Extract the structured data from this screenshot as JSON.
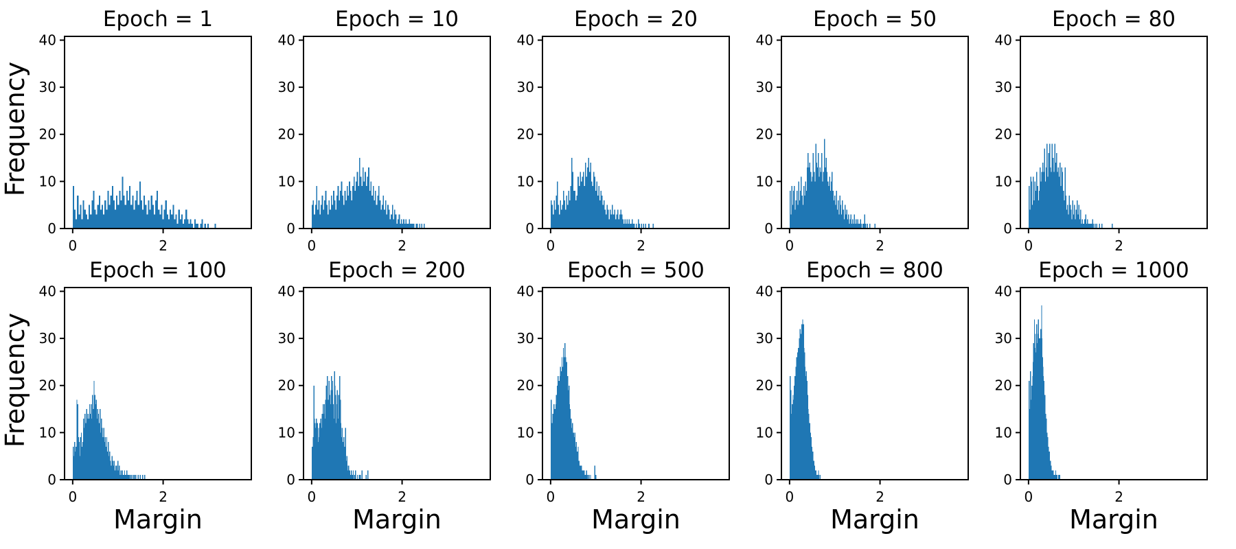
{
  "figure": {
    "background": "#ffffff",
    "bar_color": "#1f77b4",
    "axis_color": "#000000",
    "rows": [
      {
        "ylabel": "Frequency"
      },
      {
        "ylabel": "Frequency"
      }
    ]
  },
  "chart_data": [
    {
      "type": "bar",
      "title": "Epoch = 1",
      "xlabel": "",
      "ylabel": "Frequency",
      "xlim": [
        -0.18,
        3.95
      ],
      "ylim": [
        0,
        40.8
      ],
      "xticks": [
        0,
        2
      ],
      "yticks": [
        0,
        10,
        20,
        30,
        40
      ],
      "x_start": 0,
      "bin_width": 0.032,
      "heights": [
        9,
        4,
        2,
        7,
        3,
        5,
        2,
        6,
        4,
        3,
        2,
        5,
        3,
        6,
        8,
        4,
        3,
        5,
        7,
        4,
        5,
        3,
        6,
        4,
        8,
        5,
        7,
        9,
        6,
        4,
        7,
        5,
        8,
        6,
        11,
        7,
        5,
        8,
        6,
        9,
        5,
        7,
        4,
        6,
        8,
        5,
        10,
        6,
        4,
        7,
        5,
        3,
        6,
        4,
        7,
        5,
        3,
        6,
        8,
        4,
        3,
        5,
        2,
        4,
        6,
        3,
        2,
        4,
        3,
        5,
        2,
        3,
        1,
        4,
        2,
        3,
        1,
        2,
        4,
        2,
        1,
        2,
        1,
        0,
        2,
        1,
        1,
        0,
        1,
        2,
        0,
        1,
        0,
        1,
        0,
        0,
        0,
        0,
        1,
        0
      ]
    },
    {
      "type": "bar",
      "title": "Epoch = 10",
      "xlabel": "",
      "ylabel": "",
      "xlim": [
        -0.18,
        3.95
      ],
      "ylim": [
        0,
        40.8
      ],
      "xticks": [
        0,
        2
      ],
      "yticks": [
        0,
        10,
        20,
        30,
        40
      ],
      "x_start": 0,
      "bin_width": 0.025,
      "heights": [
        5,
        6,
        3,
        5,
        9,
        4,
        6,
        3,
        5,
        7,
        4,
        6,
        8,
        5,
        3,
        6,
        4,
        7,
        5,
        8,
        6,
        4,
        7,
        9,
        6,
        8,
        10,
        7,
        5,
        8,
        6,
        9,
        7,
        10,
        8,
        6,
        9,
        11,
        8,
        10,
        12,
        9,
        15,
        11,
        9,
        13,
        10,
        12,
        9,
        11,
        13,
        8,
        10,
        7,
        9,
        6,
        8,
        5,
        7,
        9,
        6,
        4,
        5,
        7,
        4,
        6,
        3,
        5,
        4,
        2,
        3,
        5,
        2,
        4,
        3,
        1,
        2,
        3,
        1,
        2,
        1,
        2,
        1,
        2,
        1,
        1,
        2,
        1,
        1,
        1,
        1,
        0,
        1,
        1,
        0,
        1,
        0,
        1,
        0,
        1
      ]
    },
    {
      "type": "bar",
      "title": "Epoch = 20",
      "xlabel": "",
      "ylabel": "",
      "xlim": [
        -0.18,
        3.95
      ],
      "ylim": [
        0,
        40.8
      ],
      "xticks": [
        0,
        2
      ],
      "yticks": [
        0,
        10,
        20,
        30,
        40
      ],
      "x_start": 0,
      "bin_width": 0.023,
      "heights": [
        6,
        5,
        3,
        6,
        4,
        7,
        10,
        5,
        3,
        6,
        4,
        5,
        8,
        6,
        4,
        7,
        5,
        8,
        6,
        9,
        15,
        12,
        8,
        8,
        6,
        7,
        11,
        9,
        12,
        10,
        11,
        12,
        9,
        14,
        11,
        13,
        15,
        12,
        14,
        10,
        9,
        12,
        11,
        8,
        10,
        7,
        9,
        6,
        8,
        7,
        5,
        6,
        4,
        3,
        5,
        4,
        2,
        4,
        3,
        5,
        3,
        4,
        2,
        3,
        4,
        2,
        3,
        4,
        3,
        2,
        1,
        2,
        1,
        2,
        1,
        2,
        1,
        1,
        2,
        1,
        1,
        0,
        1,
        0,
        2,
        1,
        0,
        1,
        0,
        1,
        0,
        1,
        0,
        0,
        1,
        0,
        0,
        0,
        1,
        0
      ]
    },
    {
      "type": "bar",
      "title": "Epoch = 50",
      "xlabel": "",
      "ylabel": "",
      "xlim": [
        -0.18,
        3.95
      ],
      "ylim": [
        0,
        40.8
      ],
      "xticks": [
        0,
        2
      ],
      "yticks": [
        0,
        10,
        20,
        30,
        40
      ],
      "x_start": 0,
      "bin_width": 0.019,
      "heights": [
        8,
        3,
        9,
        5,
        8,
        9,
        4,
        6,
        8,
        5,
        10,
        6,
        8,
        11,
        7,
        5,
        9,
        7,
        10,
        8,
        13,
        16,
        13,
        14,
        12,
        10,
        11,
        16,
        12,
        10,
        18,
        14,
        13,
        16,
        11,
        13,
        12,
        16,
        10,
        12,
        19,
        13,
        15,
        12,
        10,
        9,
        11,
        8,
        10,
        12,
        8,
        6,
        7,
        5,
        8,
        4,
        6,
        3,
        7,
        5,
        3,
        6,
        4,
        2,
        5,
        3,
        4,
        2,
        3,
        1,
        2,
        3,
        1,
        2,
        1,
        3,
        1,
        2,
        1,
        2,
        1,
        1,
        2,
        1,
        0,
        1,
        1,
        3,
        1,
        0,
        1,
        0,
        0,
        1,
        0,
        0,
        0,
        0,
        0,
        1
      ]
    },
    {
      "type": "bar",
      "title": "Epoch = 80",
      "xlabel": "",
      "ylabel": "",
      "xlim": [
        -0.18,
        3.95
      ],
      "ylim": [
        0,
        40.8
      ],
      "xticks": [
        0,
        2
      ],
      "yticks": [
        0,
        10,
        20,
        30,
        40
      ],
      "x_start": 0,
      "bin_width": 0.019,
      "heights": [
        9,
        4,
        11,
        10,
        5,
        11,
        6,
        10,
        8,
        12,
        9,
        6,
        8,
        13,
        10,
        12,
        14,
        12,
        17,
        10,
        13,
        18,
        11,
        16,
        18,
        13,
        12,
        18,
        15,
        12,
        18,
        14,
        16,
        12,
        13,
        11,
        14,
        9,
        13,
        12,
        8,
        6,
        13,
        7,
        4,
        5,
        3,
        7,
        5,
        4,
        2,
        6,
        3,
        5,
        2,
        4,
        6,
        3,
        5,
        2,
        4,
        1,
        2,
        1,
        1,
        2,
        3,
        1,
        2,
        1,
        1,
        1,
        1,
        1,
        2,
        1,
        0,
        1,
        0,
        1,
        0,
        0,
        1,
        0,
        0,
        1,
        0,
        0,
        0,
        0,
        0,
        0,
        0,
        0,
        0,
        0,
        0,
        1,
        0,
        0
      ]
    },
    {
      "type": "bar",
      "title": "Epoch = 100",
      "xlabel": "Margin",
      "ylabel": "Frequency",
      "xlim": [
        -0.18,
        3.95
      ],
      "ylim": [
        0,
        40.8
      ],
      "xticks": [
        0,
        2
      ],
      "yticks": [
        0,
        10,
        20,
        30,
        40
      ],
      "x_start": 0,
      "bin_width": 0.0165,
      "heights": [
        7,
        5,
        8,
        6,
        7,
        17,
        16,
        9,
        8,
        5,
        9,
        10,
        7,
        8,
        13,
        11,
        14,
        12,
        15,
        13,
        14,
        13,
        16,
        14,
        16,
        13,
        18,
        15,
        21,
        18,
        16,
        17,
        13,
        15,
        14,
        12,
        15,
        10,
        13,
        11,
        9,
        11,
        8,
        9,
        7,
        9,
        6,
        8,
        5,
        6,
        4,
        3,
        5,
        4,
        3,
        4,
        2,
        3,
        3,
        2,
        4,
        2,
        3,
        1,
        2,
        1,
        2,
        1,
        1,
        2,
        1,
        1,
        2,
        1,
        1,
        1,
        0,
        1,
        0,
        1,
        0,
        1,
        1,
        0,
        1,
        0,
        0,
        1,
        0,
        0,
        1,
        0,
        0,
        1,
        0,
        0,
        1,
        0,
        0,
        0
      ]
    },
    {
      "type": "bar",
      "title": "Epoch = 200",
      "xlabel": "Margin",
      "ylabel": "",
      "xlim": [
        -0.18,
        3.95
      ],
      "ylim": [
        0,
        40.8
      ],
      "xticks": [
        0,
        2
      ],
      "yticks": [
        0,
        10,
        20,
        30,
        40
      ],
      "x_start": 0,
      "bin_width": 0.013,
      "heights": [
        7,
        6,
        9,
        20,
        13,
        12,
        11,
        13,
        10,
        12,
        8,
        11,
        9,
        12,
        10,
        13,
        11,
        14,
        12,
        16,
        14,
        16,
        13,
        17,
        20,
        16,
        22,
        17,
        16,
        21,
        18,
        16,
        19,
        22,
        19,
        21,
        16,
        13,
        23,
        20,
        18,
        12,
        16,
        19,
        13,
        18,
        12,
        22,
        17,
        12,
        9,
        11,
        8,
        6,
        9,
        7,
        5,
        11,
        4,
        5,
        3,
        2,
        3,
        2,
        2,
        1,
        1,
        2,
        1,
        1,
        2,
        0,
        1,
        0,
        2,
        0,
        0,
        1,
        0,
        0,
        1,
        0,
        1,
        0,
        0,
        2,
        0,
        0,
        0,
        0,
        0,
        0,
        1,
        0,
        0,
        2,
        0,
        0,
        0,
        0
      ]
    },
    {
      "type": "bar",
      "title": "Epoch = 500",
      "xlabel": "Margin",
      "ylabel": "",
      "xlim": [
        -0.18,
        3.95
      ],
      "ylim": [
        0,
        40.8
      ],
      "xticks": [
        0,
        2
      ],
      "yticks": [
        0,
        10,
        20,
        30,
        40
      ],
      "x_start": 0,
      "bin_width": 0.0105,
      "heights": [
        17,
        10,
        12,
        11,
        14,
        13,
        16,
        12,
        15,
        14,
        16,
        18,
        15,
        20,
        17,
        22,
        19,
        21,
        18,
        22,
        24,
        20,
        23,
        26,
        22,
        24,
        28,
        23,
        26,
        29,
        24,
        26,
        22,
        25,
        21,
        22,
        19,
        17,
        20,
        16,
        15,
        12,
        13,
        10,
        11,
        12,
        9,
        10,
        8,
        9,
        10,
        7,
        6,
        8,
        5,
        6,
        4,
        7,
        3,
        4,
        3,
        2,
        3,
        2,
        3,
        1,
        2,
        1,
        2,
        1,
        2,
        1,
        1,
        0,
        1,
        2,
        0,
        1,
        0,
        0,
        1,
        0,
        0,
        1,
        0,
        0,
        0,
        0,
        0,
        0,
        0,
        0,
        3,
        1,
        1,
        0,
        0,
        0,
        0,
        0
      ]
    },
    {
      "type": "bar",
      "title": "Epoch = 800",
      "xlabel": "Margin",
      "ylabel": "",
      "xlim": [
        -0.18,
        3.95
      ],
      "ylim": [
        0,
        40.8
      ],
      "xticks": [
        0,
        2
      ],
      "yticks": [
        0,
        10,
        20,
        30,
        40
      ],
      "x_start": 0,
      "bin_width": 0.0085,
      "heights": [
        22,
        9,
        19,
        10,
        14,
        12,
        16,
        13,
        18,
        15,
        17,
        20,
        16,
        22,
        19,
        24,
        21,
        26,
        22,
        25,
        27,
        24,
        28,
        26,
        30,
        27,
        32,
        28,
        26,
        31,
        28,
        33,
        29,
        34,
        30,
        33,
        28,
        25,
        27,
        24,
        22,
        20,
        23,
        19,
        21,
        17,
        18,
        15,
        13,
        14,
        11,
        12,
        9,
        10,
        8,
        9,
        6,
        7,
        5,
        6,
        4,
        3,
        4,
        2,
        3,
        2,
        1,
        2,
        1,
        1,
        0,
        1,
        0,
        1,
        2,
        1,
        0,
        0,
        1,
        0
      ]
    },
    {
      "type": "bar",
      "title": "Epoch = 1000",
      "xlabel": "Margin",
      "ylabel": "",
      "xlim": [
        -0.18,
        3.95
      ],
      "ylim": [
        0,
        40.8
      ],
      "xticks": [
        0,
        2
      ],
      "yticks": [
        0,
        10,
        20,
        30,
        40
      ],
      "x_start": 0,
      "bin_width": 0.008,
      "heights": [
        21,
        14,
        14,
        15,
        23,
        15,
        14,
        17,
        20,
        16,
        19,
        22,
        25,
        29,
        24,
        34,
        28,
        25,
        31,
        27,
        26,
        33,
        28,
        26,
        29,
        31,
        34,
        27,
        30,
        26,
        28,
        30,
        26,
        32,
        28,
        37,
        30,
        26,
        24,
        22,
        19,
        21,
        18,
        16,
        18,
        13,
        14,
        12,
        13,
        9,
        10,
        8,
        9,
        6,
        7,
        5,
        6,
        4,
        3,
        4,
        2,
        3,
        2,
        1,
        2,
        1,
        1,
        2,
        1,
        0,
        1,
        0,
        1,
        0,
        2,
        1,
        0,
        1,
        0,
        0,
        0,
        0,
        1,
        0,
        0,
        1,
        0,
        0,
        0,
        0
      ]
    }
  ]
}
